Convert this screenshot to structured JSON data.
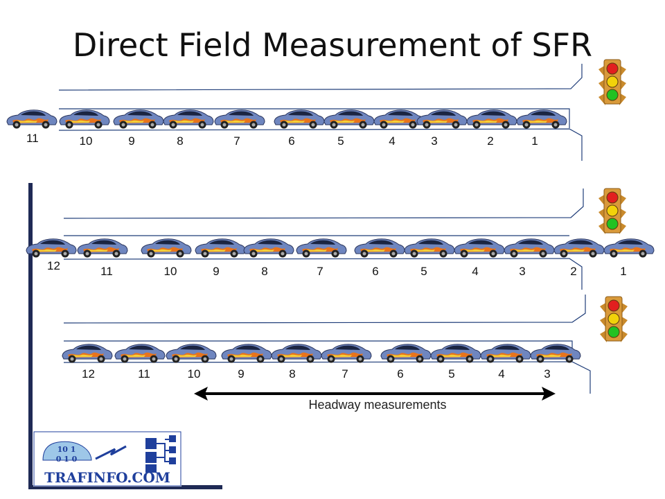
{
  "title": "Direct Field Measurement of SFR",
  "rows": [
    {
      "lead_label": "11",
      "labels": [
        "10",
        "9",
        "8",
        "7",
        "6",
        "5",
        "4",
        "3",
        "2",
        "1"
      ]
    },
    {
      "lead_label": "12",
      "labels": [
        "11",
        "10",
        "9",
        "8",
        "7",
        "6",
        "5",
        "4",
        "3",
        "2",
        "1"
      ]
    },
    {
      "lead_label": "12",
      "labels": [
        "11",
        "10",
        "9",
        "8",
        "7",
        "6",
        "5",
        "4",
        "3"
      ]
    }
  ],
  "headway_label": "Headway measurements",
  "logo": {
    "text": "TRAFINFO.COM",
    "digits": [
      "10",
      "1",
      "0",
      "1",
      "0"
    ]
  },
  "colors": {
    "car_body": "#6f86bf",
    "car_flames": "#e8741c",
    "signal_housing": "#d99a3a",
    "signal_red": "#e21f1f",
    "signal_yellow": "#f2d20a",
    "signal_green": "#22c222",
    "axis_line": "#1f2a55",
    "logo_blue": "#1f3f9c",
    "road_line": "#1e3c78"
  }
}
